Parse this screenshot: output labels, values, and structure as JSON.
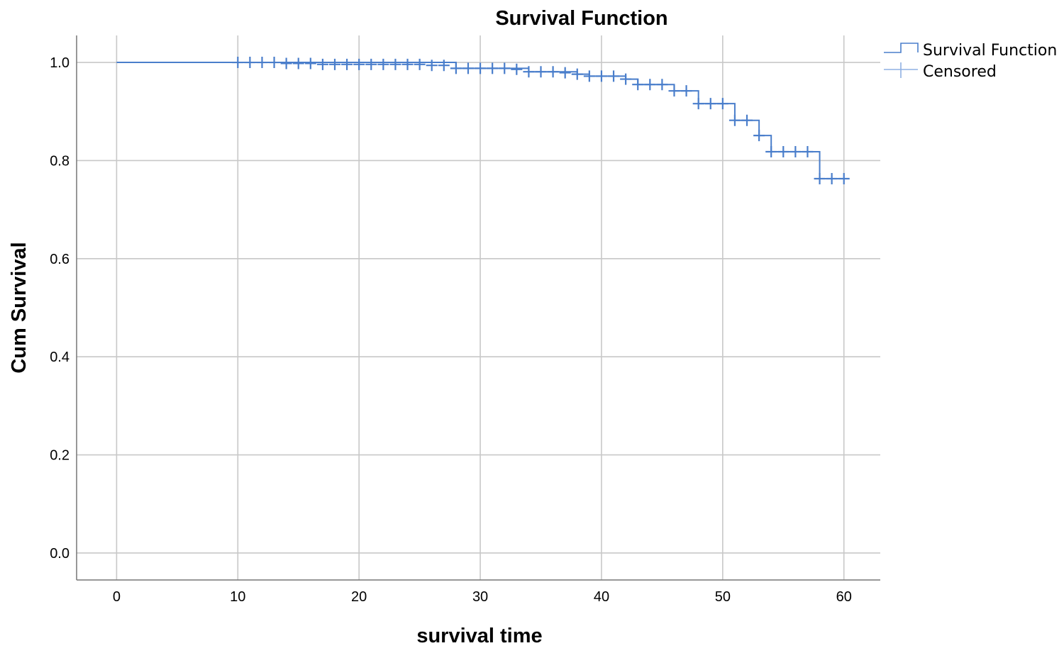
{
  "chart_data": {
    "type": "line",
    "title": "Survival Function",
    "xlabel": "survival time",
    "ylabel": "Cum Survival",
    "xlim": [
      -3.3,
      63
    ],
    "ylim": [
      -0.055,
      1.055
    ],
    "x_ticks": [
      "0",
      "10",
      "20",
      "30",
      "40",
      "50",
      "60"
    ],
    "y_ticks": [
      "0.0",
      "0.2",
      "0.4",
      "0.6",
      "0.8",
      "1.0"
    ],
    "grid": true,
    "legend_position": "top-right",
    "colors": {
      "line": "#4a7ecb",
      "grid": "#c8c8c8",
      "axis": "#777777"
    },
    "series": [
      {
        "name": "Survival Function",
        "x": [
          0,
          27,
          28,
          33,
          34,
          37,
          38,
          39,
          42,
          43,
          46,
          48,
          51,
          53,
          54,
          58,
          60.3
        ],
        "y": [
          1.0,
          1.0,
          0.988,
          0.988,
          0.981,
          0.981,
          0.976,
          0.972,
          0.966,
          0.955,
          0.942,
          0.916,
          0.882,
          0.851,
          0.818,
          0.763,
          0.763
        ]
      },
      {
        "name": "Censored",
        "x": [
          10,
          11,
          12,
          13,
          14,
          15,
          16,
          17,
          18,
          19,
          20,
          21,
          22,
          23,
          24,
          25,
          26,
          27,
          28,
          29,
          30,
          31,
          32,
          33,
          34,
          35,
          36,
          37,
          38,
          39,
          40,
          41,
          42,
          43,
          44,
          45,
          46,
          47,
          48,
          49,
          50,
          51,
          52,
          53,
          54,
          55,
          56,
          57,
          58,
          59,
          60
        ],
        "y": [
          1.0,
          1.0,
          1.0,
          1.0,
          0.998,
          0.998,
          0.998,
          0.996,
          0.996,
          0.996,
          0.996,
          0.996,
          0.996,
          0.996,
          0.996,
          0.996,
          0.994,
          0.994,
          0.988,
          0.988,
          0.988,
          0.988,
          0.988,
          0.986,
          0.981,
          0.981,
          0.981,
          0.979,
          0.976,
          0.972,
          0.972,
          0.972,
          0.966,
          0.955,
          0.955,
          0.955,
          0.942,
          0.942,
          0.916,
          0.916,
          0.916,
          0.882,
          0.882,
          0.851,
          0.818,
          0.818,
          0.818,
          0.818,
          0.763,
          0.763,
          0.763
        ]
      }
    ]
  }
}
